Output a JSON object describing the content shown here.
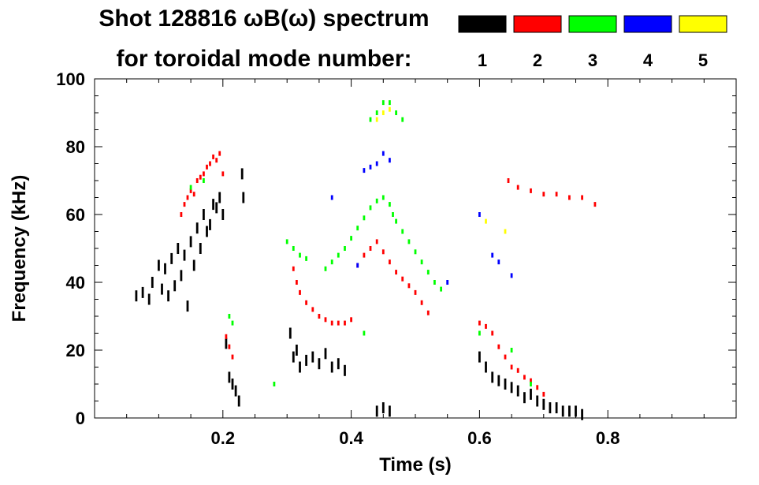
{
  "chart_data": {
    "type": "scatter",
    "title_line1": "Shot 128816 ωB(ω) spectrum",
    "title_line2": "for toroidal mode number:",
    "xlabel": "Time (s)",
    "ylabel": "Frequency (kHz)",
    "xlim": [
      0.0,
      1.0
    ],
    "ylim": [
      0,
      100
    ],
    "xticks": [
      0.2,
      0.4,
      0.6,
      0.8
    ],
    "xtick_labels": [
      "0.2",
      "0.4",
      "0.6",
      "0.8"
    ],
    "yticks": [
      0,
      20,
      40,
      60,
      80,
      100
    ],
    "ytick_labels": [
      "0",
      "20",
      "40",
      "60",
      "80",
      "100"
    ],
    "legend_position": "top-right",
    "series": [
      {
        "name": "1",
        "color": "#000000",
        "points": [
          [
            0.065,
            36
          ],
          [
            0.075,
            37
          ],
          [
            0.085,
            35
          ],
          [
            0.09,
            40
          ],
          [
            0.1,
            45
          ],
          [
            0.105,
            38
          ],
          [
            0.11,
            44
          ],
          [
            0.115,
            36
          ],
          [
            0.12,
            47
          ],
          [
            0.125,
            39
          ],
          [
            0.13,
            50
          ],
          [
            0.135,
            42
          ],
          [
            0.14,
            48
          ],
          [
            0.145,
            33
          ],
          [
            0.15,
            52
          ],
          [
            0.155,
            45
          ],
          [
            0.16,
            56
          ],
          [
            0.165,
            50
          ],
          [
            0.17,
            60
          ],
          [
            0.175,
            55
          ],
          [
            0.18,
            57
          ],
          [
            0.185,
            63
          ],
          [
            0.19,
            62
          ],
          [
            0.195,
            65
          ],
          [
            0.2,
            60
          ],
          [
            0.205,
            22
          ],
          [
            0.21,
            12
          ],
          [
            0.215,
            10
          ],
          [
            0.22,
            8
          ],
          [
            0.225,
            5
          ],
          [
            0.23,
            72
          ],
          [
            0.232,
            65
          ],
          [
            0.305,
            25
          ],
          [
            0.31,
            18
          ],
          [
            0.315,
            20
          ],
          [
            0.32,
            15
          ],
          [
            0.33,
            17
          ],
          [
            0.34,
            18
          ],
          [
            0.35,
            16
          ],
          [
            0.36,
            19
          ],
          [
            0.37,
            15
          ],
          [
            0.38,
            16
          ],
          [
            0.39,
            14
          ],
          [
            0.44,
            2
          ],
          [
            0.45,
            3
          ],
          [
            0.46,
            2
          ],
          [
            0.6,
            18
          ],
          [
            0.61,
            15
          ],
          [
            0.62,
            12
          ],
          [
            0.63,
            11
          ],
          [
            0.64,
            10
          ],
          [
            0.65,
            9
          ],
          [
            0.66,
            8
          ],
          [
            0.67,
            6
          ],
          [
            0.68,
            7
          ],
          [
            0.69,
            5
          ],
          [
            0.7,
            4
          ],
          [
            0.71,
            3
          ],
          [
            0.72,
            3
          ],
          [
            0.73,
            2
          ],
          [
            0.74,
            2
          ],
          [
            0.75,
            2
          ],
          [
            0.76,
            1
          ]
        ]
      },
      {
        "name": "2",
        "color": "#ff0000",
        "points": [
          [
            0.135,
            60
          ],
          [
            0.14,
            63
          ],
          [
            0.145,
            65
          ],
          [
            0.15,
            67
          ],
          [
            0.155,
            66
          ],
          [
            0.16,
            70
          ],
          [
            0.165,
            71
          ],
          [
            0.17,
            72
          ],
          [
            0.175,
            74
          ],
          [
            0.18,
            75
          ],
          [
            0.185,
            77
          ],
          [
            0.19,
            76
          ],
          [
            0.195,
            78
          ],
          [
            0.2,
            72
          ],
          [
            0.205,
            24
          ],
          [
            0.21,
            21
          ],
          [
            0.215,
            18
          ],
          [
            0.31,
            44
          ],
          [
            0.315,
            40
          ],
          [
            0.32,
            37
          ],
          [
            0.33,
            34
          ],
          [
            0.34,
            32
          ],
          [
            0.35,
            30
          ],
          [
            0.36,
            29
          ],
          [
            0.37,
            28
          ],
          [
            0.38,
            28
          ],
          [
            0.39,
            28
          ],
          [
            0.4,
            29
          ],
          [
            0.41,
            45
          ],
          [
            0.42,
            48
          ],
          [
            0.43,
            50
          ],
          [
            0.44,
            52
          ],
          [
            0.45,
            49
          ],
          [
            0.46,
            46
          ],
          [
            0.47,
            43
          ],
          [
            0.48,
            41
          ],
          [
            0.49,
            39
          ],
          [
            0.5,
            37
          ],
          [
            0.51,
            34
          ],
          [
            0.52,
            31
          ],
          [
            0.6,
            28
          ],
          [
            0.61,
            27
          ],
          [
            0.62,
            25
          ],
          [
            0.63,
            21
          ],
          [
            0.64,
            18
          ],
          [
            0.65,
            15
          ],
          [
            0.66,
            14
          ],
          [
            0.67,
            12
          ],
          [
            0.68,
            11
          ],
          [
            0.69,
            9
          ],
          [
            0.7,
            7
          ],
          [
            0.645,
            70
          ],
          [
            0.66,
            68
          ],
          [
            0.68,
            67
          ],
          [
            0.7,
            66
          ],
          [
            0.72,
            66
          ],
          [
            0.74,
            65
          ],
          [
            0.76,
            65
          ],
          [
            0.78,
            63
          ]
        ]
      },
      {
        "name": "3",
        "color": "#00ff00",
        "points": [
          [
            0.15,
            68
          ],
          [
            0.17,
            70
          ],
          [
            0.21,
            30
          ],
          [
            0.215,
            28
          ],
          [
            0.3,
            52
          ],
          [
            0.31,
            50
          ],
          [
            0.32,
            48
          ],
          [
            0.33,
            47
          ],
          [
            0.36,
            44
          ],
          [
            0.37,
            46
          ],
          [
            0.38,
            48
          ],
          [
            0.39,
            50
          ],
          [
            0.4,
            53
          ],
          [
            0.41,
            56
          ],
          [
            0.42,
            59
          ],
          [
            0.43,
            62
          ],
          [
            0.44,
            64
          ],
          [
            0.45,
            65
          ],
          [
            0.46,
            63
          ],
          [
            0.465,
            60
          ],
          [
            0.47,
            58
          ],
          [
            0.48,
            55
          ],
          [
            0.49,
            52
          ],
          [
            0.5,
            49
          ],
          [
            0.51,
            46
          ],
          [
            0.52,
            43
          ],
          [
            0.53,
            40
          ],
          [
            0.54,
            38
          ],
          [
            0.43,
            88
          ],
          [
            0.44,
            90
          ],
          [
            0.45,
            93
          ],
          [
            0.46,
            93
          ],
          [
            0.47,
            90
          ],
          [
            0.48,
            88
          ],
          [
            0.28,
            10
          ],
          [
            0.42,
            25
          ],
          [
            0.6,
            25
          ],
          [
            0.65,
            20
          ],
          [
            0.68,
            10
          ]
        ]
      },
      {
        "name": "4",
        "color": "#0000ff",
        "points": [
          [
            0.42,
            73
          ],
          [
            0.43,
            74
          ],
          [
            0.44,
            75
          ],
          [
            0.45,
            78
          ],
          [
            0.46,
            76
          ],
          [
            0.37,
            65
          ],
          [
            0.41,
            45
          ],
          [
            0.55,
            40
          ],
          [
            0.6,
            60
          ],
          [
            0.62,
            48
          ],
          [
            0.63,
            46
          ],
          [
            0.65,
            42
          ]
        ]
      },
      {
        "name": "5",
        "color": "#ffff00",
        "points": [
          [
            0.45,
            90
          ],
          [
            0.46,
            91
          ],
          [
            0.44,
            88
          ],
          [
            0.61,
            58
          ],
          [
            0.64,
            55
          ]
        ]
      }
    ]
  }
}
